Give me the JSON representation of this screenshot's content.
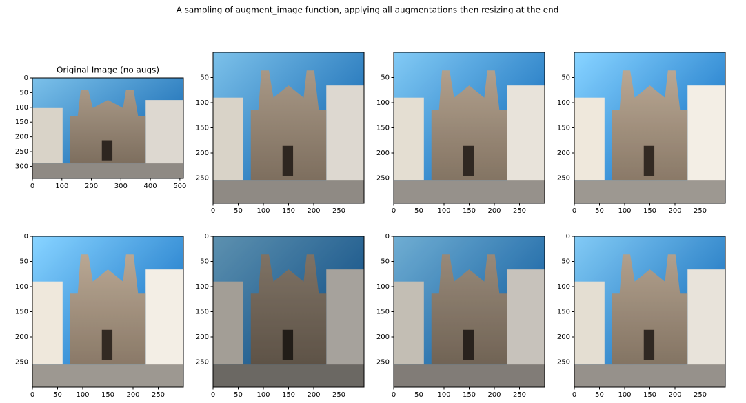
{
  "title": "A sampling of augment_image function, applying all augmentations then resizing at the end",
  "panels": [
    {
      "title": "Original Image (no augs)",
      "xlim": [
        0,
        512
      ],
      "ylim": [
        341,
        0
      ],
      "xticks": [
        0,
        100,
        200,
        300,
        400,
        500
      ],
      "yticks": [
        0,
        50,
        100,
        150,
        200,
        250,
        300
      ]
    },
    {
      "xlim": [
        0,
        300
      ],
      "ylim": [
        300,
        0
      ],
      "xticks": [
        0,
        50,
        100,
        150,
        200,
        250
      ],
      "yticks": [
        50,
        100,
        150,
        200,
        250
      ]
    },
    {
      "xlim": [
        0,
        300
      ],
      "ylim": [
        300,
        0
      ],
      "xticks": [
        0,
        50,
        100,
        150,
        200,
        250
      ],
      "yticks": [
        50,
        100,
        150,
        200,
        250
      ]
    },
    {
      "xlim": [
        0,
        300
      ],
      "ylim": [
        300,
        0
      ],
      "xticks": [
        0,
        50,
        100,
        150,
        200,
        250
      ],
      "yticks": [
        50,
        100,
        150,
        200,
        250
      ]
    },
    {
      "xlim": [
        0,
        300
      ],
      "ylim": [
        300,
        0
      ],
      "xticks": [
        0,
        50,
        100,
        150,
        200,
        250
      ],
      "yticks": [
        0,
        50,
        100,
        150,
        200,
        250
      ]
    },
    {
      "xlim": [
        0,
        300
      ],
      "ylim": [
        300,
        0
      ],
      "xticks": [
        0,
        50,
        100,
        150,
        200,
        250
      ],
      "yticks": [
        0,
        50,
        100,
        150,
        200,
        250
      ]
    },
    {
      "xlim": [
        0,
        300
      ],
      "ylim": [
        300,
        0
      ],
      "xticks": [
        0,
        50,
        100,
        150,
        200,
        250
      ],
      "yticks": [
        0,
        50,
        100,
        150,
        200,
        250
      ]
    },
    {
      "xlim": [
        0,
        300
      ],
      "ylim": [
        300,
        0
      ],
      "xticks": [
        0,
        50,
        100,
        150,
        200,
        250
      ],
      "yticks": [
        0,
        50,
        100,
        150,
        200,
        250
      ]
    }
  ]
}
